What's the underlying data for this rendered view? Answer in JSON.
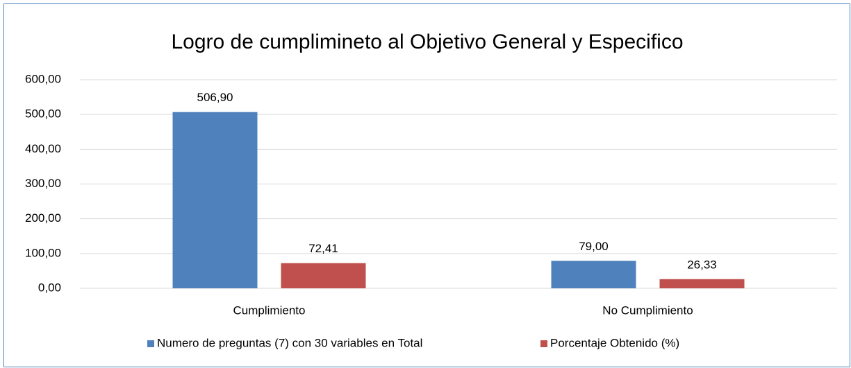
{
  "chart_data": {
    "type": "bar",
    "title": "Logro de cumplimineto al Objetivo General y Especifico",
    "categories": [
      "Cumplimiento",
      "No Cumplimiento"
    ],
    "series": [
      {
        "name": "Numero de preguntas (7) con 30 variables en Total",
        "color": "#4f81bd",
        "values": [
          506.9,
          79.0
        ],
        "value_labels": [
          "506,90",
          "79,00"
        ]
      },
      {
        "name": "Porcentaje Obtenido (%)",
        "color": "#c0504d",
        "values": [
          72.41,
          26.33
        ],
        "value_labels": [
          "72,41",
          "26,33"
        ]
      }
    ],
    "ylim": [
      0,
      600
    ],
    "yticks": [
      {
        "value": 0,
        "label": "0,00"
      },
      {
        "value": 100,
        "label": "100,00"
      },
      {
        "value": 200,
        "label": "200,00"
      },
      {
        "value": 300,
        "label": "300,00"
      },
      {
        "value": 400,
        "label": "400,00"
      },
      {
        "value": 500,
        "label": "500,00"
      },
      {
        "value": 600,
        "label": "600,00"
      }
    ],
    "grid": true,
    "legend": "bottom"
  }
}
